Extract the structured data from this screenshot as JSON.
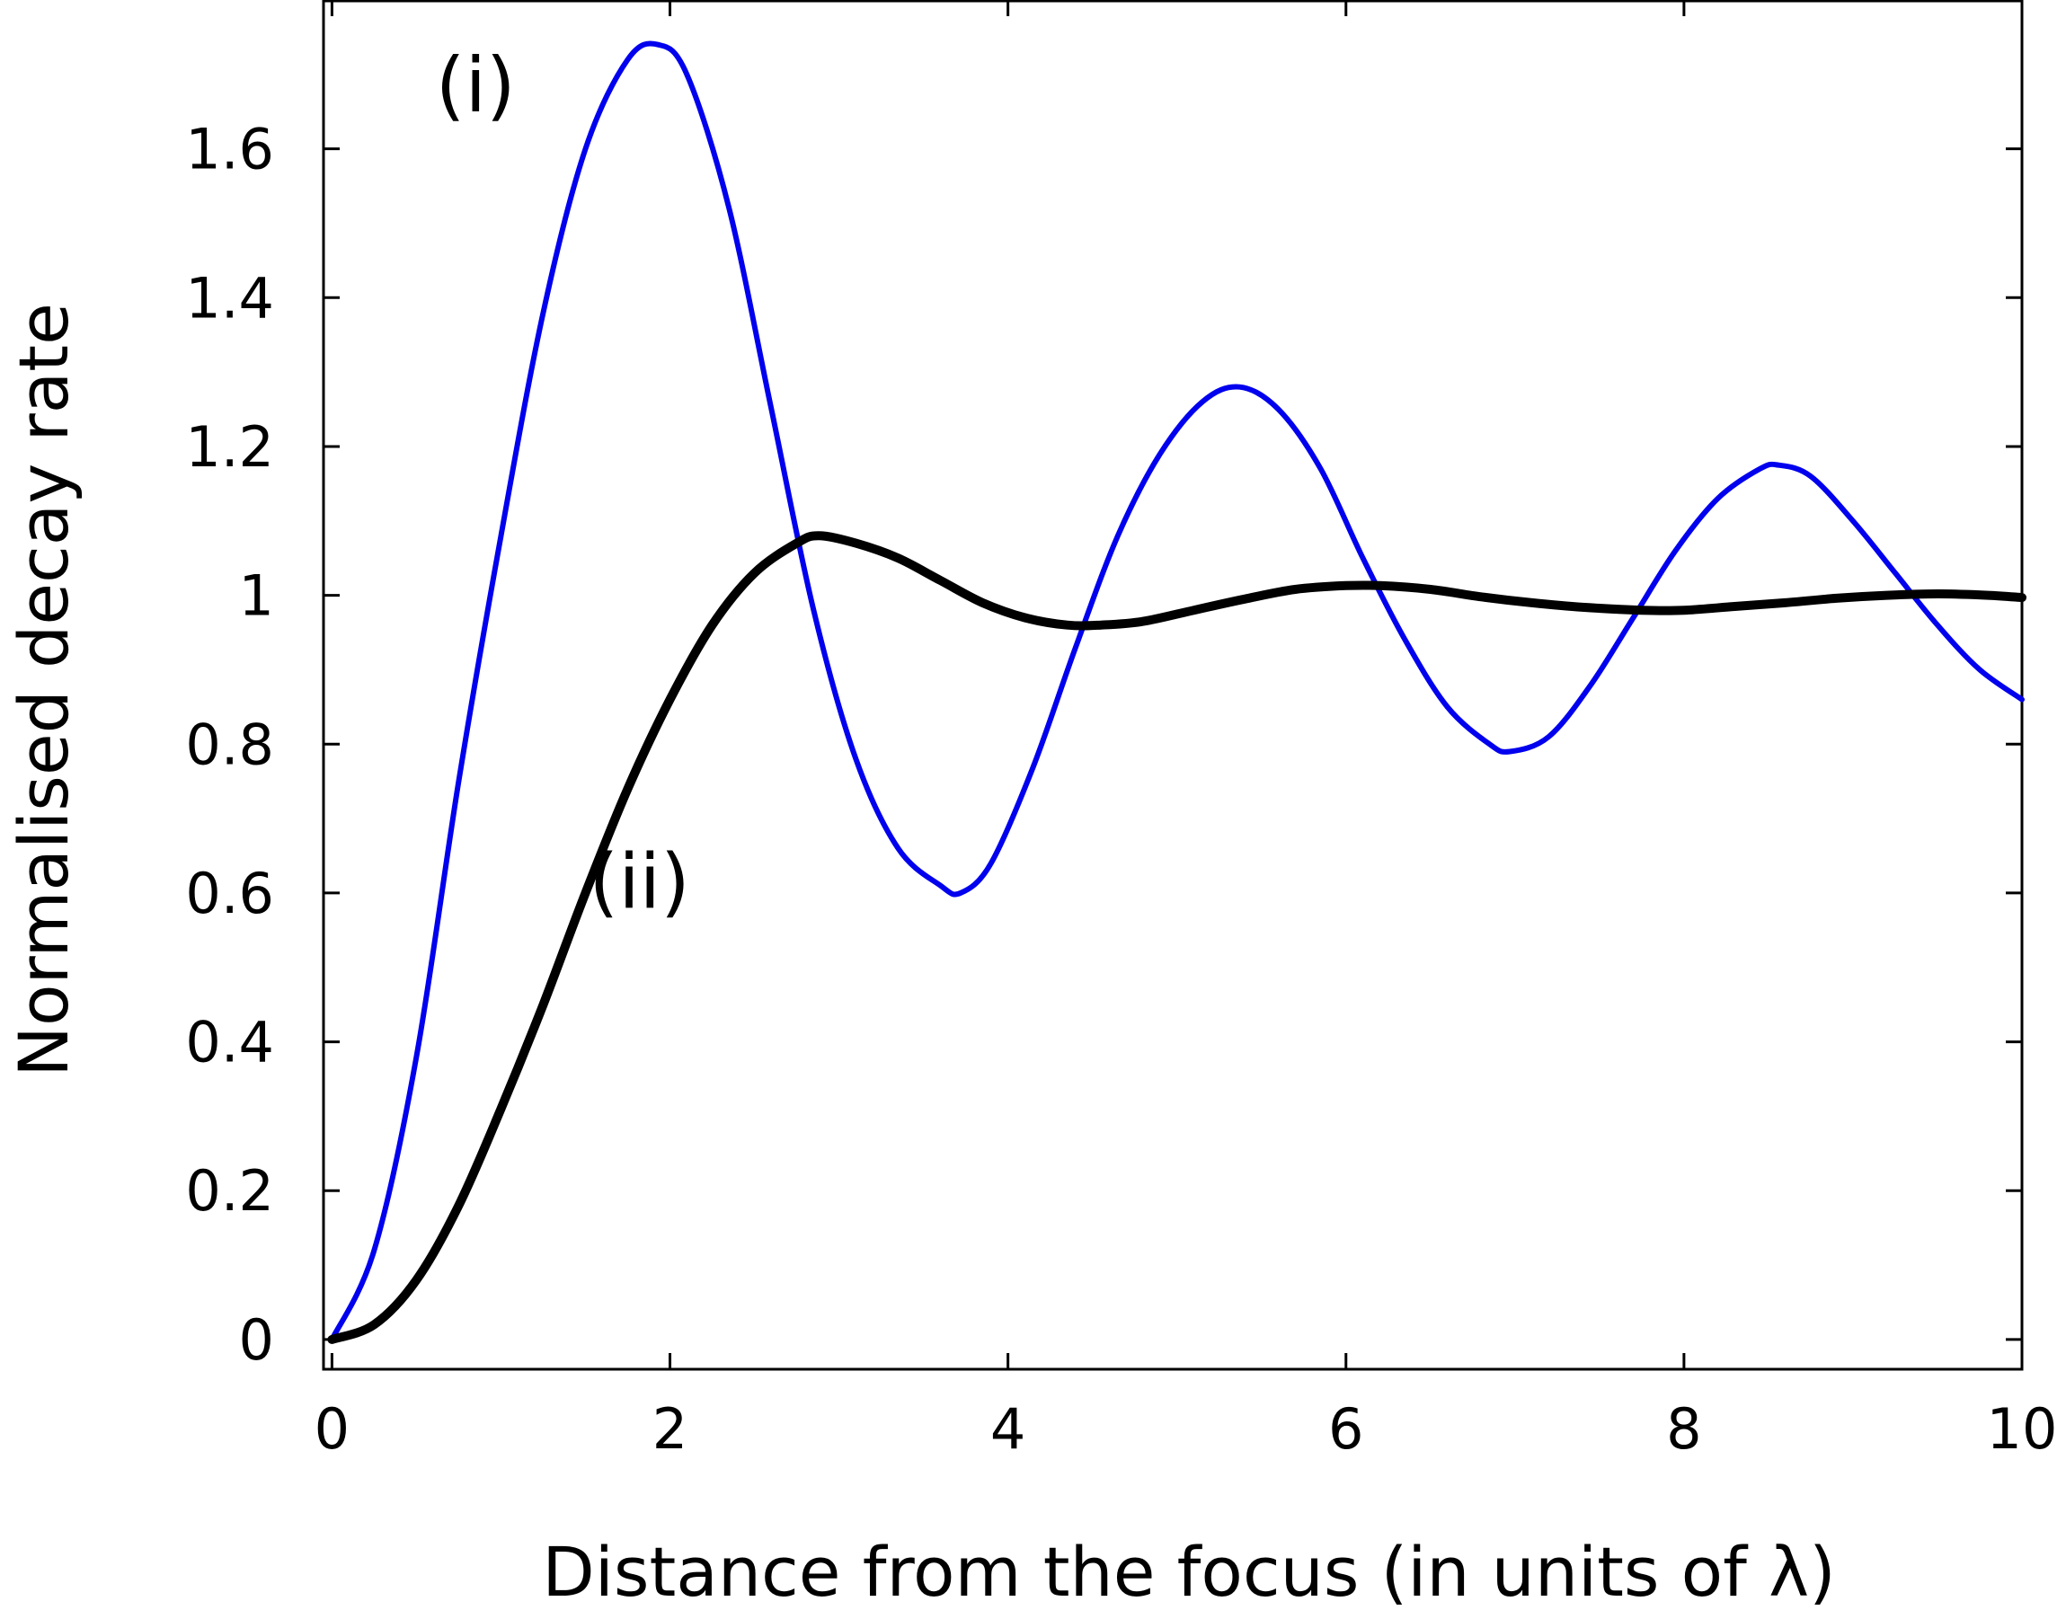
{
  "chart_data": {
    "type": "line",
    "xlabel": "Distance from the focus (in units of λ)",
    "ylabel": "Normalised decay rate",
    "xlim": [
      -0.05,
      10
    ],
    "ylim": [
      -0.04,
      1.8
    ],
    "x_ticks": [
      0,
      2,
      4,
      6,
      8,
      10
    ],
    "x_tick_labels": [
      "0",
      "2",
      "4",
      "6",
      "8",
      "10"
    ],
    "y_ticks": [
      0,
      0.2,
      0.4,
      0.6,
      0.8,
      1,
      1.2,
      1.4,
      1.6
    ],
    "y_tick_labels": [
      "0",
      "0.2",
      "0.4",
      "0.6",
      "0.8",
      "1",
      "1.2",
      "1.4",
      "1.6"
    ],
    "grid": false,
    "series": [
      {
        "name": "(i)",
        "color": "#0000ee",
        "x": [
          0,
          0.25,
          0.5,
          0.75,
          1.0,
          1.25,
          1.5,
          1.75,
          1.93,
          2.1,
          2.35,
          2.6,
          2.85,
          3.1,
          3.35,
          3.6,
          3.72,
          3.9,
          4.15,
          4.4,
          4.65,
          4.9,
          5.15,
          5.37,
          5.6,
          5.85,
          6.1,
          6.35,
          6.6,
          6.85,
          6.97,
          7.2,
          7.45,
          7.7,
          7.95,
          8.2,
          8.45,
          8.56,
          8.75,
          9.0,
          9.25,
          9.5,
          9.75,
          10.0
        ],
        "y": [
          0.0,
          0.12,
          0.38,
          0.75,
          1.08,
          1.38,
          1.6,
          1.72,
          1.74,
          1.7,
          1.52,
          1.25,
          0.98,
          0.78,
          0.66,
          0.61,
          0.6,
          0.64,
          0.77,
          0.93,
          1.08,
          1.19,
          1.26,
          1.28,
          1.25,
          1.17,
          1.05,
          0.94,
          0.85,
          0.8,
          0.79,
          0.81,
          0.88,
          0.97,
          1.06,
          1.13,
          1.17,
          1.175,
          1.16,
          1.1,
          1.03,
          0.96,
          0.9,
          0.86
        ]
      },
      {
        "name": "(ii)",
        "color": "#000000",
        "x": [
          0,
          0.25,
          0.5,
          0.75,
          1.0,
          1.25,
          1.5,
          1.75,
          2.0,
          2.25,
          2.5,
          2.75,
          2.88,
          3.1,
          3.35,
          3.6,
          3.85,
          4.1,
          4.35,
          4.55,
          4.8,
          5.1,
          5.4,
          5.7,
          6.0,
          6.2,
          6.5,
          6.8,
          7.1,
          7.4,
          7.75,
          8.0,
          8.3,
          8.6,
          8.9,
          9.2,
          9.5,
          9.8,
          10.0
        ],
        "y": [
          0.0,
          0.02,
          0.08,
          0.18,
          0.31,
          0.45,
          0.6,
          0.74,
          0.86,
          0.96,
          1.03,
          1.07,
          1.08,
          1.07,
          1.05,
          1.02,
          0.99,
          0.97,
          0.96,
          0.96,
          0.965,
          0.98,
          0.995,
          1.008,
          1.013,
          1.013,
          1.008,
          0.998,
          0.99,
          0.984,
          0.98,
          0.98,
          0.985,
          0.99,
          0.996,
          1.0,
          1.002,
          1.0,
          0.997
        ]
      }
    ],
    "annotations": [
      {
        "text": "(i)",
        "x": 0.85,
        "y": 1.65
      },
      {
        "text": "(ii)",
        "x": 1.82,
        "y": 0.58
      }
    ]
  }
}
